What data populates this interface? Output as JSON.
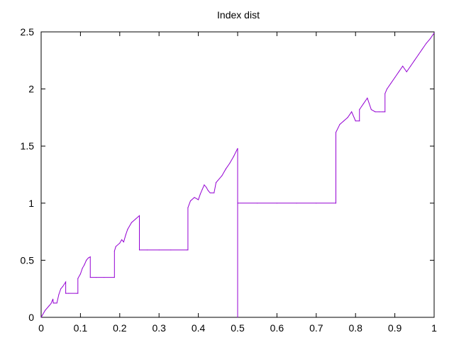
{
  "chart_data": {
    "type": "line",
    "title": "Index dist",
    "xlabel": "",
    "ylabel": "",
    "xlim": [
      0,
      1
    ],
    "ylim": [
      0,
      2.5
    ],
    "x_ticks": [
      "0",
      "0.1",
      "0.2",
      "0.3",
      "0.4",
      "0.5",
      "0.6",
      "0.7",
      "0.8",
      "0.9",
      "1"
    ],
    "y_ticks": [
      "0",
      "0.5",
      "1",
      "1.5",
      "2",
      "2.5"
    ],
    "grid": false,
    "legend": "none",
    "series": [
      {
        "color": "#9400d3",
        "x": [
          0,
          0.01,
          0.02,
          0.025,
          0.03,
          0.031,
          0.035,
          0.04,
          0.045,
          0.05,
          0.055,
          0.0625,
          0.0625,
          0.07,
          0.09,
          0.0935,
          0.0935,
          0.1,
          0.105,
          0.11,
          0.115,
          0.12,
          0.125,
          0.125,
          0.14,
          0.16,
          0.1865,
          0.1865,
          0.19,
          0.2,
          0.205,
          0.21,
          0.215,
          0.22,
          0.23,
          0.24,
          0.25,
          0.25,
          0.27,
          0.3,
          0.33,
          0.37,
          0.3735,
          0.3735,
          0.38,
          0.39,
          0.4,
          0.405,
          0.41,
          0.415,
          0.42,
          0.425,
          0.43,
          0.435,
          0.44,
          0.445,
          0.45,
          0.46,
          0.47,
          0.48,
          0.49,
          0.5,
          0.5,
          0.5,
          0.55,
          0.6,
          0.65,
          0.7,
          0.75,
          0.75,
          0.75,
          0.76,
          0.77,
          0.78,
          0.79,
          0.8,
          0.81,
          0.81,
          0.82,
          0.83,
          0.84,
          0.85,
          0.86,
          0.87,
          0.875,
          0.875,
          0.88,
          0.89,
          0.9,
          0.91,
          0.92,
          0.93,
          0.94,
          0.95,
          0.96,
          0.97,
          0.98,
          0.99,
          1
        ],
        "y": [
          0,
          0.06,
          0.1,
          0.12,
          0.16,
          0.125,
          0.125,
          0.125,
          0.2,
          0.25,
          0.27,
          0.31,
          0.21,
          0.21,
          0.21,
          0.21,
          0.34,
          0.38,
          0.43,
          0.46,
          0.5,
          0.52,
          0.53,
          0.35,
          0.35,
          0.35,
          0.35,
          0.58,
          0.62,
          0.65,
          0.68,
          0.66,
          0.72,
          0.77,
          0.83,
          0.86,
          0.89,
          0.59,
          0.59,
          0.59,
          0.59,
          0.59,
          0.59,
          0.96,
          1.02,
          1.05,
          1.03,
          1.08,
          1.12,
          1.16,
          1.14,
          1.11,
          1.09,
          1.09,
          1.09,
          1.18,
          1.2,
          1.24,
          1.3,
          1.35,
          1.41,
          1.48,
          0,
          1.0,
          1.0,
          1.0,
          1.0,
          1.0,
          1.0,
          1.0,
          1.62,
          1.69,
          1.72,
          1.75,
          1.8,
          1.72,
          1.72,
          1.82,
          1.87,
          1.92,
          1.82,
          1.8,
          1.8,
          1.8,
          1.8,
          1.96,
          2.0,
          2.05,
          2.1,
          2.15,
          2.2,
          2.15,
          2.2,
          2.25,
          2.3,
          2.35,
          2.4,
          2.44,
          2.49
        ]
      }
    ]
  }
}
